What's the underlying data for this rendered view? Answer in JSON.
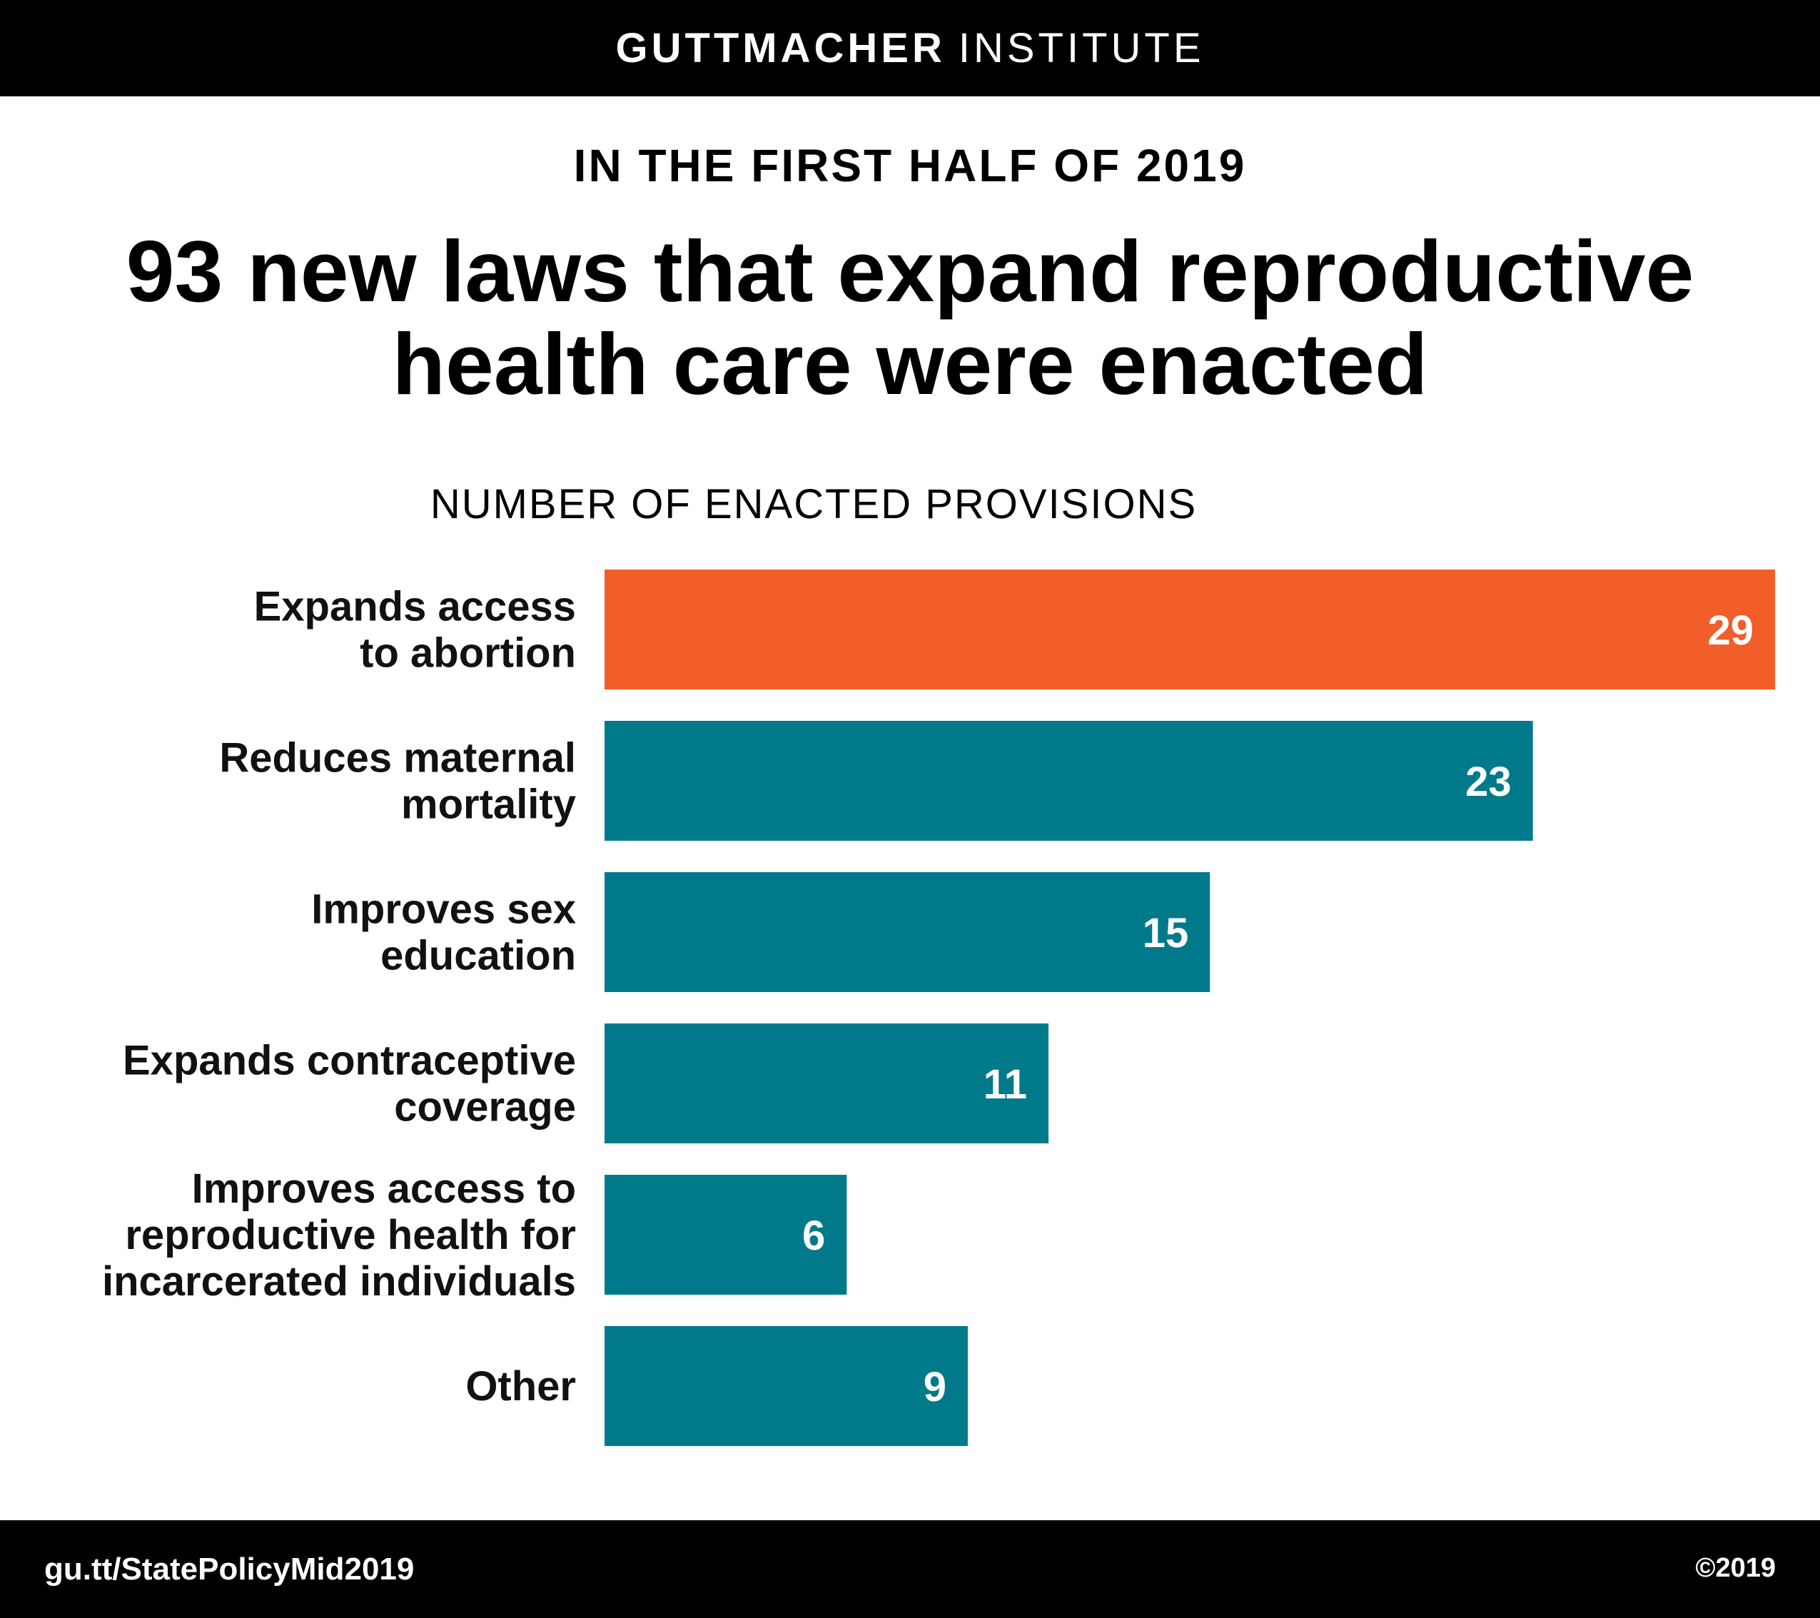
{
  "header": {
    "brand_bold": "GUTTMACHER",
    "brand_light": "INSTITUTE"
  },
  "kicker": "IN THE FIRST HALF OF 2019",
  "headline": {
    "line1": "93 new laws that expand reproductive",
    "line2": "health care were enacted"
  },
  "footer": {
    "url": "gu.tt/StatePolicyMid2019",
    "copyright": "©2019"
  },
  "chart_data": {
    "type": "bar",
    "orientation": "horizontal",
    "title": "NUMBER OF ENACTED PROVISIONS",
    "categories": [
      [
        "Expands access",
        "to abortion"
      ],
      [
        "Reduces maternal",
        "mortality"
      ],
      [
        "Improves sex",
        "education"
      ],
      [
        "Expands contraceptive",
        "coverage"
      ],
      [
        "Improves access to",
        "reproductive health for",
        "incarcerated individuals"
      ],
      [
        "Other"
      ]
    ],
    "values": [
      29,
      23,
      15,
      11,
      6,
      9
    ],
    "value_labels": [
      "29",
      "23",
      "15",
      "11",
      "6",
      "9"
    ],
    "colors": [
      "#f15e2a",
      "#007a8a",
      "#007a8a",
      "#007a8a",
      "#007a8a",
      "#007a8a"
    ],
    "xlim": [
      0,
      29
    ],
    "grid": false,
    "legend": "none"
  }
}
